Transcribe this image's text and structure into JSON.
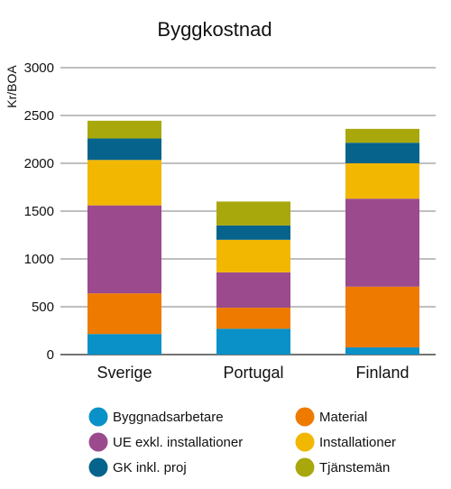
{
  "chart_data": {
    "type": "bar",
    "stacked": true,
    "title": "Byggkostnad",
    "ylabel": "Kr/BOA",
    "xlabel": "",
    "ylim": [
      0,
      3000
    ],
    "yticks": [
      0,
      500,
      1000,
      1500,
      2000,
      2500,
      3000
    ],
    "grid": true,
    "legend_position": "bottom",
    "categories": [
      "Sverige",
      "Portugal",
      "Finland"
    ],
    "series": [
      {
        "name": "Byggnadsarbetare",
        "color": "#0a91c8",
        "values": [
          215,
          270,
          75
        ]
      },
      {
        "name": "Material",
        "color": "#ee7b00",
        "values": [
          425,
          220,
          635
        ]
      },
      {
        "name": "UE exkl. installationer",
        "color": "#9b4a8e",
        "values": [
          920,
          370,
          920
        ]
      },
      {
        "name": "Installationer",
        "color": "#f2b700",
        "values": [
          475,
          340,
          370
        ]
      },
      {
        "name": "GK inkl. proj",
        "color": "#06638b",
        "values": [
          225,
          150,
          215
        ]
      },
      {
        "name": "Tjänstemän",
        "color": "#a8a80c",
        "values": [
          185,
          250,
          145
        ]
      }
    ]
  }
}
